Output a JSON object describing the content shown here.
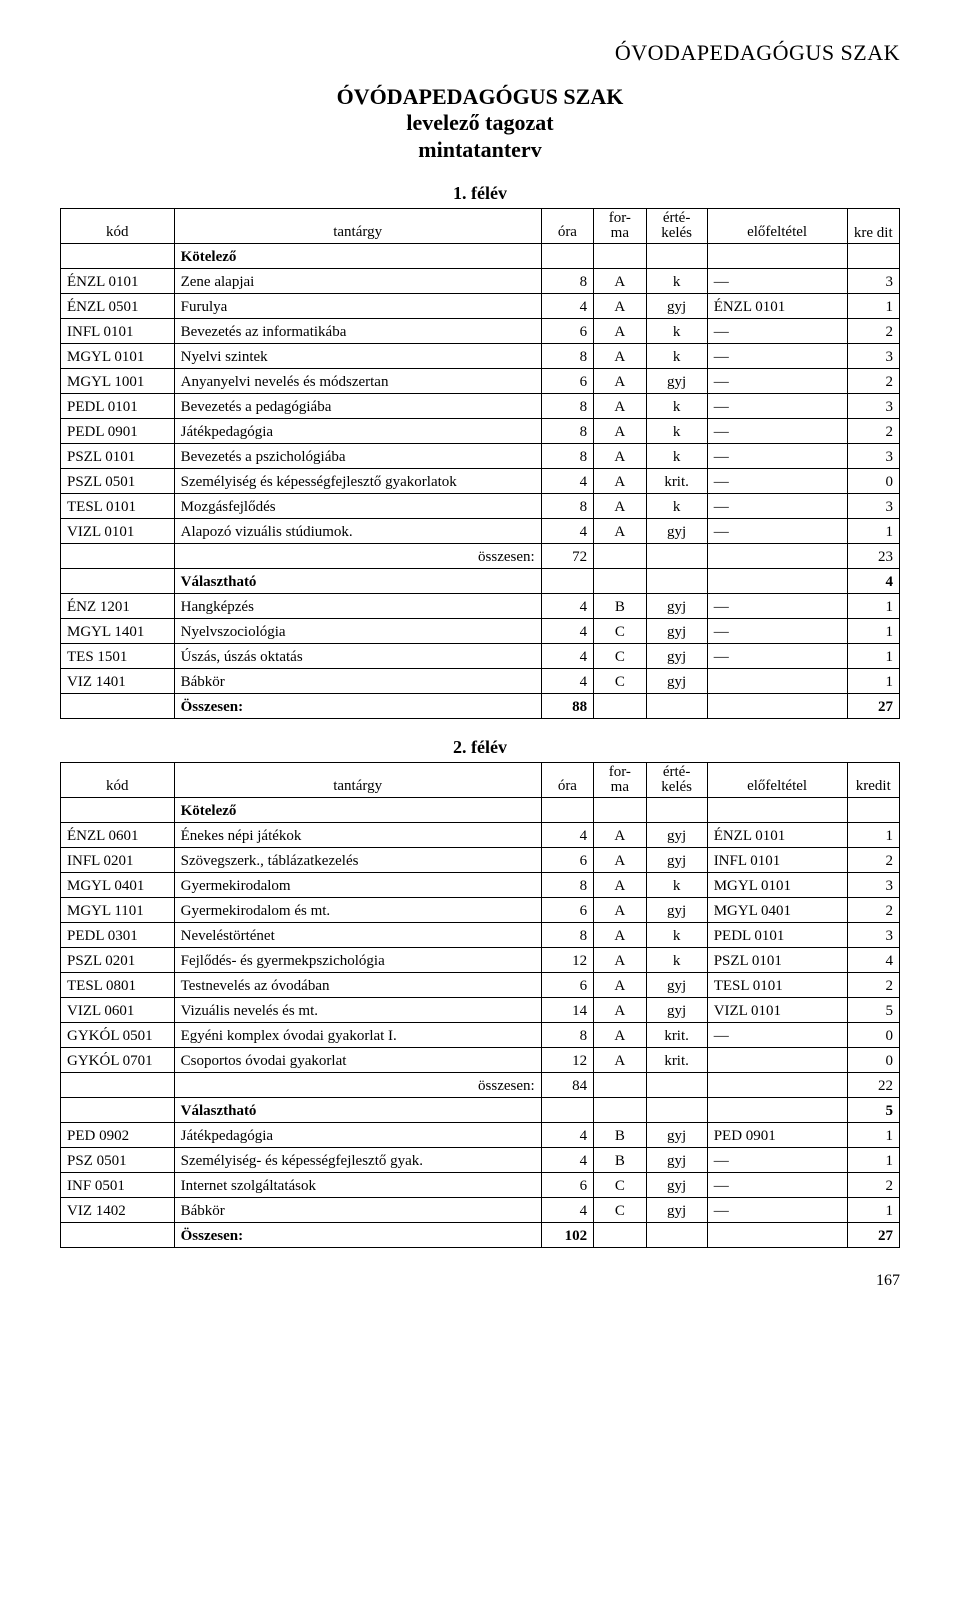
{
  "header_right": "ÓVODAPEDAGÓGUS SZAK",
  "title_line1": "ÓVÓDAPEDAGÓGUS SZAK",
  "title_line2": "levelező tagozat",
  "title_line3": "mintatanterv",
  "columns": {
    "kod": "kód",
    "tantargy": "tantárgy",
    "ora": "óra",
    "forma": "for-\nma",
    "ertek": "érté-\nkelés",
    "elofeltetel": "előfeltétel",
    "kre_dit": "kre\ndit",
    "kredit": "kredit"
  },
  "labels": {
    "kotelezo": "Kötelező",
    "valaszthato": "Választható",
    "osszesen_lower": "összesen:",
    "osszesen_upper": "Összesen:"
  },
  "sem1": {
    "title": "1. félév",
    "mandatory": [
      {
        "kod": "ÉNZL 0101",
        "t": "Zene alapjai",
        "ora": "8",
        "f": "A",
        "e": "k",
        "p": "—",
        "k": "3"
      },
      {
        "kod": "ÉNZL 0501",
        "t": "Furulya",
        "ora": "4",
        "f": "A",
        "e": "gyj",
        "p": "ÉNZL 0101",
        "k": "1"
      },
      {
        "kod": "INFL 0101",
        "t": "Bevezetés az informatikába",
        "ora": "6",
        "f": "A",
        "e": "k",
        "p": "—",
        "k": "2"
      },
      {
        "kod": "MGYL 0101",
        "t": "Nyelvi szintek",
        "ora": "8",
        "f": "A",
        "e": "k",
        "p": "—",
        "k": "3"
      },
      {
        "kod": "MGYL 1001",
        "t": "Anyanyelvi nevelés és módszertan",
        "ora": "6",
        "f": "A",
        "e": "gyj",
        "p": "—",
        "k": "2"
      },
      {
        "kod": "PEDL 0101",
        "t": "Bevezetés a pedagógiába",
        "ora": "8",
        "f": "A",
        "e": "k",
        "p": "—",
        "k": "3"
      },
      {
        "kod": "PEDL 0901",
        "t": "Játékpedagógia",
        "ora": "8",
        "f": "A",
        "e": "k",
        "p": "—",
        "k": "2"
      },
      {
        "kod": "PSZL 0101",
        "t": "Bevezetés a pszichológiába",
        "ora": "8",
        "f": "A",
        "e": "k",
        "p": "—",
        "k": "3"
      },
      {
        "kod": "PSZL 0501",
        "t": "Személyiség és képességfejlesztő gyakorlatok",
        "ora": "4",
        "f": "A",
        "e": "krit.",
        "p": "—",
        "k": "0"
      },
      {
        "kod": "TESL 0101",
        "t": "Mozgásfejlődés",
        "ora": "8",
        "f": "A",
        "e": "k",
        "p": "—",
        "k": "3"
      },
      {
        "kod": "VIZL 0101",
        "t": "Alapozó vizuális stúdiumok.",
        "ora": "4",
        "f": "A",
        "e": "gyj",
        "p": "—",
        "k": "1"
      }
    ],
    "sum_ora": "72",
    "sum_k": "23",
    "valaszthato_k": "4",
    "optional": [
      {
        "kod": "ÉNZ 1201",
        "t": "Hangképzés",
        "ora": "4",
        "f": "B",
        "e": "gyj",
        "p": "—",
        "k": "1"
      },
      {
        "kod": "MGYL 1401",
        "t": "Nyelvszociológia",
        "ora": "4",
        "f": "C",
        "e": "gyj",
        "p": "—",
        "k": "1"
      },
      {
        "kod": "TES 1501",
        "t": "Úszás, úszás oktatás",
        "ora": "4",
        "f": "C",
        "e": "gyj",
        "p": "—",
        "k": "1"
      },
      {
        "kod": "VIZ 1401",
        "t": "Bábkör",
        "ora": "4",
        "f": "C",
        "e": "gyj",
        "p": "",
        "k": "1"
      }
    ],
    "total_ora": "88",
    "total_k": "27"
  },
  "sem2": {
    "title": "2. félév",
    "mandatory": [
      {
        "kod": "ÉNZL 0601",
        "t": "Énekes népi játékok",
        "ora": "4",
        "f": "A",
        "e": "gyj",
        "p": "ÉNZL 0101",
        "k": "1"
      },
      {
        "kod": "INFL 0201",
        "t": "Szövegszerk., táblázatkezelés",
        "ora": "6",
        "f": "A",
        "e": "gyj",
        "p": "INFL 0101",
        "k": "2"
      },
      {
        "kod": "MGYL 0401",
        "t": "Gyermekirodalom",
        "ora": "8",
        "f": "A",
        "e": "k",
        "p": "MGYL 0101",
        "k": "3"
      },
      {
        "kod": "MGYL 1101",
        "t": "Gyermekirodalom és mt.",
        "ora": "6",
        "f": "A",
        "e": "gyj",
        "p": "MGYL 0401",
        "k": "2"
      },
      {
        "kod": "PEDL 0301",
        "t": "Neveléstörténet",
        "ora": "8",
        "f": "A",
        "e": "k",
        "p": "PEDL 0101",
        "k": "3"
      },
      {
        "kod": "PSZL 0201",
        "t": "Fejlődés- és gyermekpszichológia",
        "ora": "12",
        "f": "A",
        "e": "k",
        "p": "PSZL 0101",
        "k": "4"
      },
      {
        "kod": "TESL 0801",
        "t": "Testnevelés az óvodában",
        "ora": "6",
        "f": "A",
        "e": "gyj",
        "p": "TESL 0101",
        "k": "2"
      },
      {
        "kod": "VIZL 0601",
        "t": "Vizuális nevelés és mt.",
        "ora": "14",
        "f": "A",
        "e": "gyj",
        "p": "VIZL 0101",
        "k": "5"
      },
      {
        "kod": "GYKÓL 0501",
        "t": "Egyéni komplex óvodai gyakorlat I.",
        "ora": "8",
        "f": "A",
        "e": "krit.",
        "p": "—",
        "k": "0"
      },
      {
        "kod": "GYKÓL 0701",
        "t": "Csoportos óvodai gyakorlat",
        "ora": "12",
        "f": "A",
        "e": "krit.",
        "p": "",
        "k": "0"
      }
    ],
    "sum_ora": "84",
    "sum_k": "22",
    "valaszthato_k": "5",
    "optional": [
      {
        "kod": "PED 0902",
        "t": "Játékpedagógia",
        "ora": "4",
        "f": "B",
        "e": "gyj",
        "p": "PED 0901",
        "k": "1"
      },
      {
        "kod": "PSZ 0501",
        "t": "Személyiség- és képességfejlesztő gyak.",
        "ora": "4",
        "f": "B",
        "e": "gyj",
        "p": "—",
        "k": "1"
      },
      {
        "kod": "INF 0501",
        "t": "Internet szolgáltatások",
        "ora": "6",
        "f": "C",
        "e": "gyj",
        "p": "—",
        "k": "2"
      },
      {
        "kod": "VIZ 1402",
        "t": "Bábkör",
        "ora": "4",
        "f": "C",
        "e": "gyj",
        "p": "—",
        "k": "1"
      }
    ],
    "total_ora": "102",
    "total_k": "27"
  },
  "page_number": "167"
}
